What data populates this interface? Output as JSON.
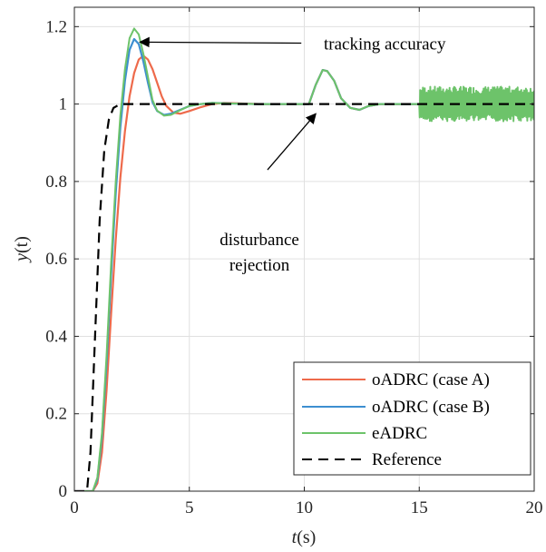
{
  "chart_data": {
    "type": "line",
    "xlabel_var": "t",
    "xlabel_unit": "(s)",
    "ylabel_var": "y",
    "ylabel_unit": "(t)",
    "xlim": [
      0,
      20
    ],
    "ylim": [
      0,
      1.25
    ],
    "xticks": [
      0,
      5,
      10,
      15,
      20
    ],
    "yticks": [
      0,
      0.2,
      0.4,
      0.6,
      0.8,
      1,
      1.2
    ],
    "xtick_labels": [
      "0",
      "5",
      "10",
      "15",
      "20"
    ],
    "ytick_labels": [
      "0",
      "0.2",
      "0.4",
      "0.6",
      "0.8",
      "1",
      "1.2"
    ],
    "grid": true,
    "legend_position": "bottom-right",
    "series": [
      {
        "name": "oADRC (case A)",
        "color": "#ee6a4b",
        "style": "solid",
        "points": [
          [
            0,
            0
          ],
          [
            0.8,
            0
          ],
          [
            1.0,
            0.02
          ],
          [
            1.2,
            0.1
          ],
          [
            1.4,
            0.26
          ],
          [
            1.6,
            0.46
          ],
          [
            1.8,
            0.65
          ],
          [
            2.0,
            0.81
          ],
          [
            2.2,
            0.93
          ],
          [
            2.4,
            1.02
          ],
          [
            2.6,
            1.08
          ],
          [
            2.8,
            1.115
          ],
          [
            3.0,
            1.125
          ],
          [
            3.2,
            1.115
          ],
          [
            3.4,
            1.09
          ],
          [
            3.6,
            1.055
          ],
          [
            3.8,
            1.02
          ],
          [
            4.0,
            0.995
          ],
          [
            4.3,
            0.978
          ],
          [
            4.6,
            0.975
          ],
          [
            5.0,
            0.982
          ],
          [
            5.5,
            0.992
          ],
          [
            6.0,
            1.0
          ],
          [
            6.5,
            1.003
          ],
          [
            7.0,
            1.002
          ],
          [
            8.0,
            1.0
          ],
          [
            10.0,
            1.0
          ],
          [
            10.2,
            1.0
          ],
          [
            10.5,
            1.05
          ],
          [
            10.8,
            1.088
          ],
          [
            11.0,
            1.085
          ],
          [
            11.3,
            1.06
          ],
          [
            11.6,
            1.015
          ],
          [
            12.0,
            0.99
          ],
          [
            12.4,
            0.985
          ],
          [
            12.8,
            0.995
          ],
          [
            13.3,
            1.0
          ],
          [
            15.0,
            1.0
          ]
        ]
      },
      {
        "name": "oADRC (case B)",
        "color": "#3d8fd0",
        "style": "solid",
        "points": [
          [
            0,
            0
          ],
          [
            0.8,
            0
          ],
          [
            1.0,
            0.03
          ],
          [
            1.2,
            0.14
          ],
          [
            1.4,
            0.33
          ],
          [
            1.6,
            0.56
          ],
          [
            1.8,
            0.77
          ],
          [
            2.0,
            0.94
          ],
          [
            2.2,
            1.06
          ],
          [
            2.4,
            1.14
          ],
          [
            2.6,
            1.168
          ],
          [
            2.8,
            1.155
          ],
          [
            3.0,
            1.11
          ],
          [
            3.2,
            1.055
          ],
          [
            3.4,
            1.005
          ],
          [
            3.6,
            0.982
          ],
          [
            3.9,
            0.972
          ],
          [
            4.2,
            0.975
          ],
          [
            4.6,
            0.985
          ],
          [
            5.0,
            0.995
          ],
          [
            5.5,
            1.0
          ],
          [
            6.0,
            1.003
          ],
          [
            7.0,
            1.001
          ],
          [
            8.0,
            1.0
          ],
          [
            10.0,
            1.0
          ],
          [
            10.2,
            1.0
          ],
          [
            10.5,
            1.05
          ],
          [
            10.8,
            1.088
          ],
          [
            11.0,
            1.085
          ],
          [
            11.3,
            1.06
          ],
          [
            11.6,
            1.015
          ],
          [
            12.0,
            0.99
          ],
          [
            12.4,
            0.985
          ],
          [
            12.8,
            0.995
          ],
          [
            13.3,
            1.0
          ],
          [
            15.0,
            1.0
          ]
        ]
      },
      {
        "name": "eADRC",
        "color": "#6dc36a",
        "style": "solid",
        "noise_from": 15,
        "noise_amplitude": 0.045,
        "points": [
          [
            0,
            0
          ],
          [
            0.8,
            0
          ],
          [
            1.0,
            0.035
          ],
          [
            1.2,
            0.15
          ],
          [
            1.4,
            0.35
          ],
          [
            1.6,
            0.59
          ],
          [
            1.8,
            0.8
          ],
          [
            2.0,
            0.97
          ],
          [
            2.2,
            1.09
          ],
          [
            2.4,
            1.17
          ],
          [
            2.6,
            1.195
          ],
          [
            2.8,
            1.18
          ],
          [
            3.0,
            1.13
          ],
          [
            3.2,
            1.07
          ],
          [
            3.4,
            1.01
          ],
          [
            3.6,
            0.983
          ],
          [
            3.9,
            0.97
          ],
          [
            4.2,
            0.972
          ],
          [
            4.6,
            0.984
          ],
          [
            5.0,
            0.995
          ],
          [
            5.5,
            1.0
          ],
          [
            6.0,
            1.003
          ],
          [
            7.0,
            1.001
          ],
          [
            8.0,
            1.0
          ],
          [
            10.0,
            1.0
          ],
          [
            10.2,
            1.0
          ],
          [
            10.5,
            1.05
          ],
          [
            10.8,
            1.088
          ],
          [
            11.0,
            1.085
          ],
          [
            11.3,
            1.06
          ],
          [
            11.6,
            1.015
          ],
          [
            12.0,
            0.99
          ],
          [
            12.4,
            0.985
          ],
          [
            12.8,
            0.995
          ],
          [
            13.3,
            1.0
          ],
          [
            15.0,
            1.0
          ],
          [
            20.0,
            1.0
          ]
        ]
      },
      {
        "name": "Reference",
        "color": "#000000",
        "style": "dashed",
        "points": [
          [
            0,
            0
          ],
          [
            0.55,
            0
          ],
          [
            0.7,
            0.1
          ],
          [
            0.9,
            0.4
          ],
          [
            1.1,
            0.7
          ],
          [
            1.3,
            0.88
          ],
          [
            1.5,
            0.96
          ],
          [
            1.7,
            0.99
          ],
          [
            2.0,
            1.0
          ],
          [
            20.0,
            1.0
          ]
        ]
      }
    ],
    "annotations": [
      {
        "text": "tracking accuracy",
        "text_x": 13.5,
        "text_y": 1.155,
        "arrow_to_x": 2.85,
        "arrow_to_y": 1.16
      },
      {
        "text_lines": [
          "disturbance",
          "rejection"
        ],
        "text_x": 8.05,
        "text_y": 0.635,
        "arrow_from_x": 8.4,
        "arrow_from_y": 0.83,
        "arrow_to_x": 10.5,
        "arrow_to_y": 0.975
      }
    ]
  }
}
